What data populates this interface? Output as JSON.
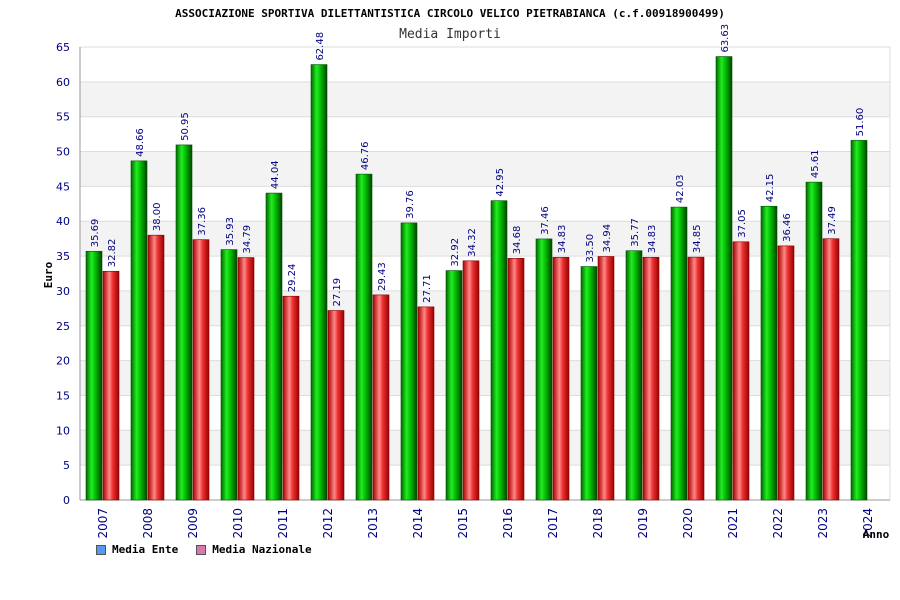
{
  "chart_data": {
    "type": "bar",
    "title": "ASSOCIAZIONE SPORTIVA DILETTANTISTICA CIRCOLO VELICO PIETRABIANCA (c.f.00918900499)",
    "subtitle": "Media Importi",
    "xlabel": "Anno",
    "ylabel": "Euro",
    "ylim": [
      0,
      65
    ],
    "yticks": [
      0,
      5,
      10,
      15,
      20,
      25,
      30,
      35,
      40,
      45,
      50,
      55,
      60,
      65
    ],
    "grid": true,
    "legend_position": "bottom-left",
    "categories": [
      "2007",
      "2008",
      "2009",
      "2010",
      "2011",
      "2012",
      "2013",
      "2014",
      "2015",
      "2016",
      "2017",
      "2018",
      "2019",
      "2020",
      "2021",
      "2022",
      "2023",
      "2024"
    ],
    "series": [
      {
        "name": "Media Ente",
        "color": "#00cc00",
        "legend_color": "#5599ee",
        "values": [
          35.69,
          48.66,
          50.95,
          35.93,
          44.04,
          62.48,
          46.76,
          39.76,
          32.92,
          42.95,
          37.46,
          33.5,
          35.77,
          42.03,
          63.63,
          42.15,
          45.61,
          51.6
        ],
        "labels": [
          "35.69",
          "48.66",
          "50.95",
          "35.93",
          "44.04",
          "62.48",
          "46.76",
          "39.76",
          "32.92",
          "42.95",
          "37.46",
          "33.50",
          "35.77",
          "42.03",
          "63.63",
          "42.15",
          "45.61",
          "51.60"
        ]
      },
      {
        "name": "Media Nazionale",
        "color": "#ee2222",
        "legend_color": "#dd77aa",
        "values": [
          32.82,
          38.0,
          37.36,
          34.79,
          29.24,
          27.19,
          29.43,
          27.71,
          34.32,
          34.68,
          34.83,
          34.94,
          34.83,
          34.85,
          37.05,
          36.46,
          37.49,
          null
        ],
        "labels": [
          "32.82",
          "38.00",
          "37.36",
          "34.79",
          "29.24",
          "27.19",
          "29.43",
          "27.71",
          "34.32",
          "34.68",
          "34.83",
          "34.94",
          "34.83",
          "34.85",
          "37.05",
          "36.46",
          "37.49",
          ""
        ]
      }
    ]
  }
}
